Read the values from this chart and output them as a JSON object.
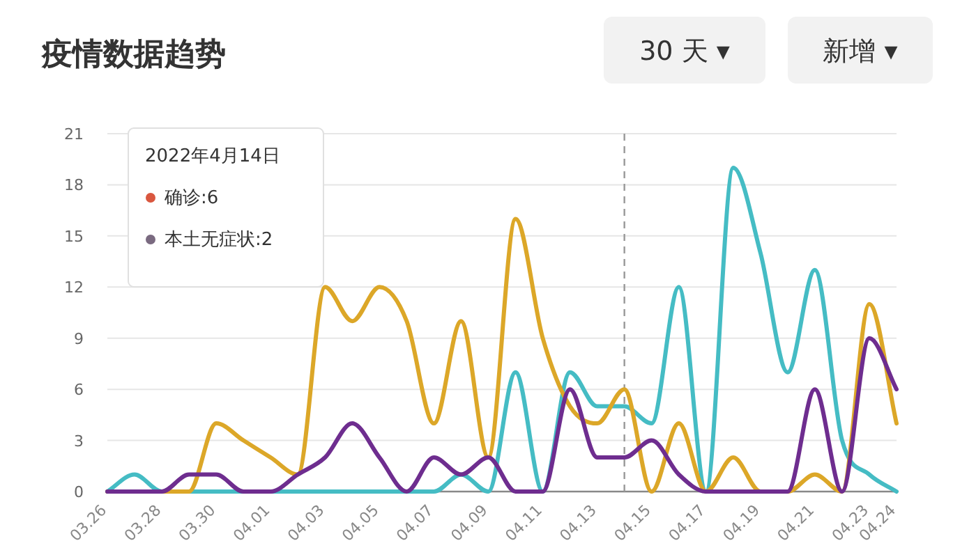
{
  "chart_data": {
    "type": "line",
    "title": "疫情数据趋势",
    "annotations": [
      "30 天 ▾",
      "新增 ▾",
      "2022年4月14日",
      "确诊:6",
      "本土无症状:2"
    ],
    "x": [
      "--03-26",
      "--03-27",
      "--03-28",
      "--03-29",
      "--03-30",
      "--03-31",
      "--04-01",
      "--04-02",
      "--04-03",
      "--04-04",
      "--04-05",
      "--04-06",
      "--04-07",
      "--04-08",
      "--04-09",
      "--04-10",
      "--04-11",
      "--04-12",
      "--04-13",
      "--04-14",
      "--04-15",
      "--04-16",
      "--04-17",
      "--04-18",
      "--04-19",
      "--04-20",
      "--04-21",
      "--04-22",
      "--04-23",
      "--04-24"
    ],
    "series": [
      {
        "color": "#45bcc4",
        "values": [
          0,
          1,
          0,
          0,
          0,
          0,
          0,
          0,
          0,
          0,
          0,
          0,
          0,
          1,
          0,
          7,
          0,
          7,
          5,
          5,
          4,
          12,
          0,
          19,
          14,
          7,
          13,
          3,
          1,
          0
        ]
      },
      {
        "color": "#dca728",
        "values": [
          0,
          0,
          0,
          0,
          4,
          3,
          2,
          1,
          12,
          10,
          12,
          10,
          4,
          10,
          2,
          16,
          9,
          5,
          4,
          6,
          0,
          4,
          0,
          2,
          0,
          0,
          1,
          0,
          11,
          4
        ]
      },
      {
        "color": "#6e2d8f",
        "values": [
          0,
          0,
          0,
          1,
          1,
          0,
          0,
          1,
          2,
          4,
          2,
          0,
          2,
          1,
          2,
          0,
          0,
          6,
          2,
          2,
          3,
          1,
          0,
          0,
          0,
          0,
          6,
          0,
          9,
          6
        ]
      }
    ],
    "xlim": [
      "--03-26",
      "--04-24"
    ],
    "xticks": [
      {
        "value": "--03-26",
        "label": "03.26"
      },
      {
        "value": "--03-28",
        "label": "03.28"
      },
      {
        "value": "--03-30",
        "label": "03.30"
      },
      {
        "value": "--04-01",
        "label": "04.01"
      },
      {
        "value": "--04-03",
        "label": "04.03"
      },
      {
        "value": "--04-05",
        "label": "04.05"
      },
      {
        "value": "--04-07",
        "label": "04.07"
      },
      {
        "value": "--04-09",
        "label": "04.09"
      },
      {
        "value": "--04-11",
        "label": "04.11"
      },
      {
        "value": "--04-13",
        "label": "04.13"
      },
      {
        "value": "--04-15",
        "label": "04.15"
      },
      {
        "value": "--04-17",
        "label": "04.17"
      },
      {
        "value": "--04-19",
        "label": "04.19"
      },
      {
        "value": "--04-21",
        "label": "04.21"
      },
      {
        "value": "--04-23",
        "label": "04.23"
      },
      {
        "value": "--04-24",
        "label": "04.24"
      }
    ],
    "ylim": [
      0,
      21
    ],
    "yticks": [
      0,
      3,
      6,
      9,
      12,
      15,
      18,
      21
    ],
    "grid": "y",
    "marker": "none",
    "line_style": "solid",
    "ref_lines": [
      {
        "axis": "x",
        "value": "--04-14",
        "color": "#999999",
        "line_style": "dashed"
      }
    ]
  }
}
